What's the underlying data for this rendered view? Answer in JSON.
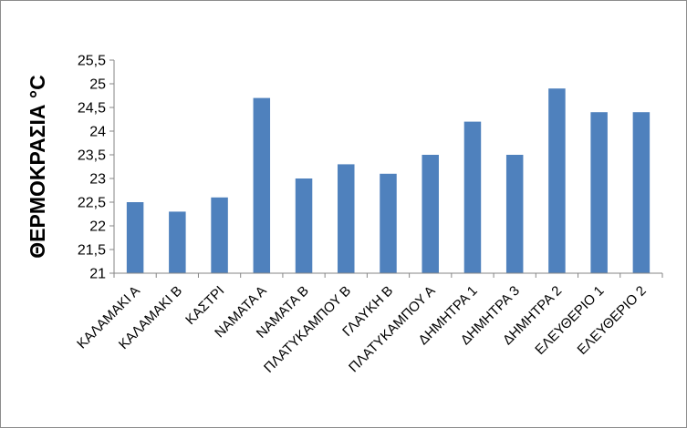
{
  "chart_data": {
    "type": "bar",
    "title": "",
    "xlabel": "",
    "ylabel": "ΘΕΡΜΟΚΡΑΣΙΑ °C",
    "ylim": [
      21,
      25.5
    ],
    "ytick_step": 0.5,
    "ytick_labels": [
      "21",
      "21,5",
      "22",
      "22,5",
      "23",
      "23,5",
      "24",
      "24,5",
      "25",
      "25,5"
    ],
    "grid": false,
    "legend": "none",
    "bar_color": "#4f81bd",
    "categories": [
      "ΚΑΛΑΜΑΚΙ Α",
      "ΚΑΛΑΜΑΚΙ Β",
      "ΚΑΣΤΡΙ",
      "ΝΑΜΑΤΑ Α",
      "ΝΑΜΑΤΑ Β",
      "ΠΛΑΤΥΚΑΜΠΟΥ Β",
      "ΓΛΑΥΚΗ Β",
      "ΠΛΑΤΥΚΑΜΠΟΥ Α",
      "ΔΗΜΗΤΡΑ 1",
      "ΔΗΜΗΤΡΑ 3",
      "ΔΗΜΗΤΡΑ 2",
      "ΕΛΕΥΘΕΡΙΟ 1",
      "ΕΛΕΥΘΕΡΙΟ 2"
    ],
    "values": [
      22.5,
      22.3,
      22.6,
      24.7,
      23.0,
      23.3,
      23.1,
      23.5,
      24.2,
      23.5,
      24.9,
      24.4,
      24.4
    ]
  }
}
